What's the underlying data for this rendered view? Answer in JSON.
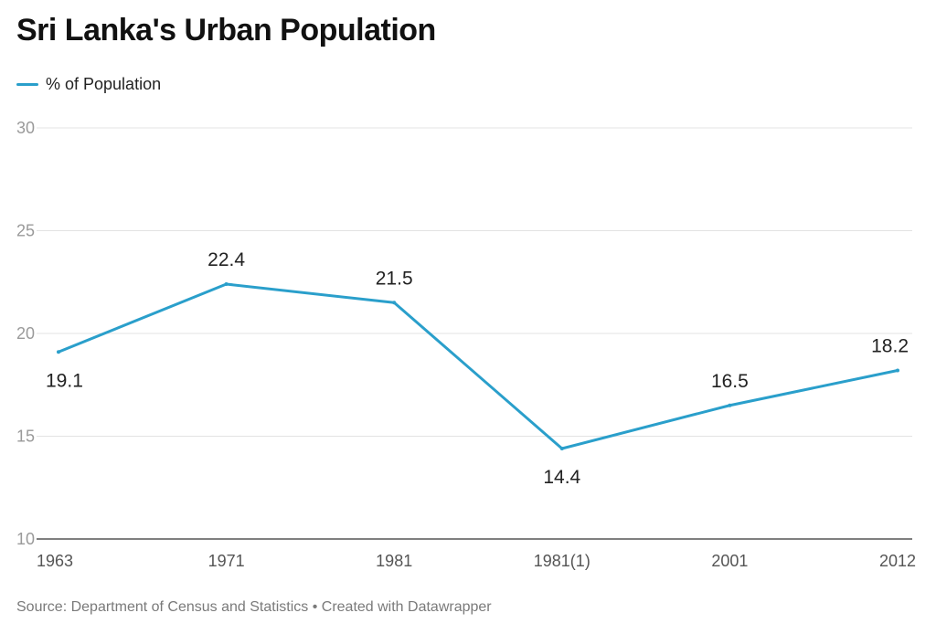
{
  "title": "Sri Lanka's Urban Population",
  "footer": "Source: Department of Census and Statistics • Created with Datawrapper",
  "colors": {
    "series": "#2a9fcb",
    "grid": "#e3e3e3",
    "axis": "#333333"
  },
  "chart_data": {
    "type": "line",
    "title": "Sri Lanka's Urban Population",
    "categories": [
      "1963",
      "1971",
      "1981",
      "1981(1)",
      "2001",
      "2012"
    ],
    "series": [
      {
        "name": "% of Population",
        "values": [
          19.1,
          22.4,
          21.5,
          14.4,
          16.5,
          18.2
        ]
      }
    ],
    "ylim": [
      10,
      30
    ],
    "yticks": [
      "10",
      "15",
      "20",
      "25",
      "30"
    ],
    "grid": true,
    "legend": "top-left",
    "data_labels": [
      "19.1",
      "22.4",
      "21.5",
      "14.4",
      "16.5",
      "18.2"
    ]
  }
}
